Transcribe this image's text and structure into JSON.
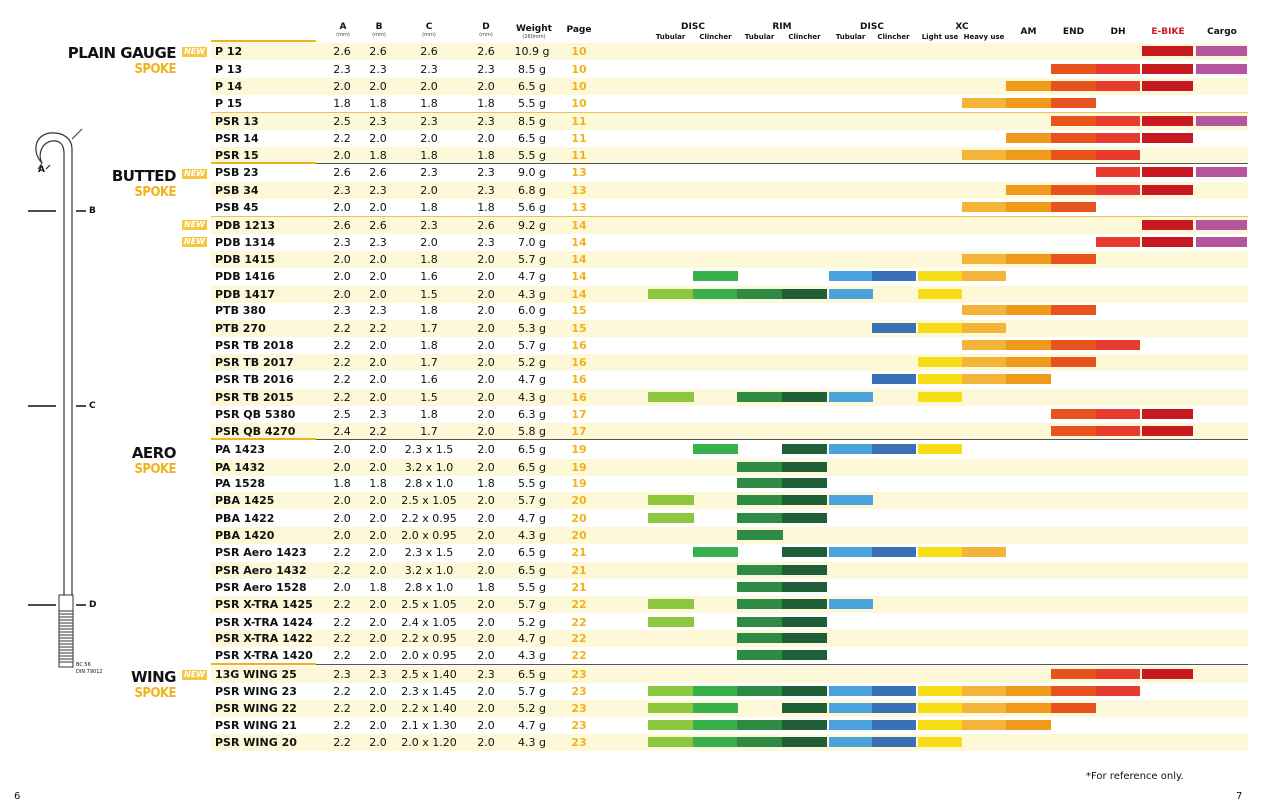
{
  "columns": {
    "a": {
      "label": "A",
      "unit": "(mm)"
    },
    "b": {
      "label": "B",
      "unit": "(mm)"
    },
    "c": {
      "label": "C",
      "unit": "(mm)"
    },
    "d": {
      "label": "D",
      "unit": "(mm)"
    },
    "weight": {
      "label": "Weight",
      "unit": "(260mm)"
    },
    "page": {
      "label": "Page"
    },
    "disc1": {
      "label": "DISC",
      "sub1": "Tubular",
      "sub2": "Clincher"
    },
    "rim": {
      "label": "RIM",
      "sub1": "Tubular",
      "sub2": "Clincher"
    },
    "disc2": {
      "label": "DISC",
      "sub1": "Tubular",
      "sub2": "Clincher"
    },
    "xc": {
      "label": "XC",
      "sub1": "Light use",
      "sub2": "Heavy use"
    },
    "am": {
      "label": "AM"
    },
    "end": {
      "label": "END"
    },
    "dh": {
      "label": "DH"
    },
    "ebike": {
      "label": "E-BIKE"
    },
    "cargo": {
      "label": "Cargo"
    }
  },
  "colors": {
    "row_tint": "#fdf9d8",
    "disc_tub": "#8dc63f",
    "disc_cli": "#39b14a",
    "rim_tub": "#2e8b44",
    "rim_cli": "#1f5e36",
    "disc2_tub": "#4aa3dc",
    "disc2_cli": "#3a70b6",
    "xc_light": "#f6dd16",
    "xc_heavy": "#f4b43a",
    "am": "#ef9a1b",
    "end": "#e8531d",
    "dh": "#e93a2e",
    "ebike": "#c81920",
    "cargo": "#b5559d"
  },
  "bar_colors": [
    "#8dc63f",
    "#39b14a",
    "#2e8b44",
    "#1f5e36",
    "#4aa3dc",
    "#3a70b6",
    "#f6dd16",
    "#f4b43a",
    "#ef9a1b",
    "#e8531d",
    "#e93a2e",
    "#c81920",
    "#b5559d"
  ],
  "categories": [
    {
      "title": "PLAIN GAUGE",
      "subtitle": "SPOKE",
      "new": "NEW"
    },
    {
      "title": "BUTTED",
      "subtitle": "SPOKE",
      "new": "NEW"
    },
    {
      "title": "AERO",
      "subtitle": "SPOKE"
    },
    {
      "title": "WING",
      "subtitle": "SPOKE",
      "new": "NEW"
    }
  ],
  "new_tags": [
    "NEW",
    "NEW"
  ],
  "diagram": {
    "labels": [
      "A",
      "B",
      "C",
      "D"
    ],
    "standard": [
      "BC 56",
      "DIN 79012"
    ]
  },
  "rows": [
    {
      "model": "P 12",
      "a": "2.6",
      "b": "2.6",
      "c": "2.6",
      "d": "2.6",
      "w": "10.9 g",
      "p": "10",
      "bars": [
        11,
        12
      ]
    },
    {
      "model": "P 13",
      "a": "2.3",
      "b": "2.3",
      "c": "2.3",
      "d": "2.3",
      "w": "8.5 g",
      "p": "10",
      "bars": [
        9,
        10,
        11,
        12
      ]
    },
    {
      "model": "P 14",
      "a": "2.0",
      "b": "2.0",
      "c": "2.0",
      "d": "2.0",
      "w": "6.5 g",
      "p": "10",
      "bars": [
        8,
        9,
        10,
        11
      ]
    },
    {
      "model": "P 15",
      "a": "1.8",
      "b": "1.8",
      "c": "1.8",
      "d": "1.8",
      "w": "5.5 g",
      "p": "10",
      "bars": [
        7,
        8,
        9
      ]
    },
    {
      "model": "PSR 13",
      "a": "2.5",
      "b": "2.3",
      "c": "2.3",
      "d": "2.3",
      "w": "8.5 g",
      "p": "11",
      "bars": [
        9,
        10,
        11,
        12
      ]
    },
    {
      "model": "PSR 14",
      "a": "2.2",
      "b": "2.0",
      "c": "2.0",
      "d": "2.0",
      "w": "6.5 g",
      "p": "11",
      "bars": [
        8,
        9,
        10,
        11
      ]
    },
    {
      "model": "PSR 15",
      "a": "2.0",
      "b": "1.8",
      "c": "1.8",
      "d": "1.8",
      "w": "5.5 g",
      "p": "11",
      "bars": [
        7,
        8,
        9,
        10
      ]
    },
    {
      "model": "PSB 23",
      "a": "2.6",
      "b": "2.6",
      "c": "2.3",
      "d": "2.3",
      "w": "9.0 g",
      "p": "13",
      "bars": [
        10,
        11,
        12
      ]
    },
    {
      "model": "PSB 34",
      "a": "2.3",
      "b": "2.3",
      "c": "2.0",
      "d": "2.3",
      "w": "6.8 g",
      "p": "13",
      "bars": [
        8,
        9,
        10,
        11
      ]
    },
    {
      "model": "PSB 45",
      "a": "2.0",
      "b": "2.0",
      "c": "1.8",
      "d": "1.8",
      "w": "5.6 g",
      "p": "13",
      "bars": [
        7,
        8,
        9
      ]
    },
    {
      "model": "PDB 1213",
      "a": "2.6",
      "b": "2.6",
      "c": "2.3",
      "d": "2.6",
      "w": "9.2 g",
      "p": "14",
      "bars": [
        11,
        12
      ]
    },
    {
      "model": "PDB 1314",
      "a": "2.3",
      "b": "2.3",
      "c": "2.0",
      "d": "2.3",
      "w": "7.0 g",
      "p": "14",
      "bars": [
        10,
        11,
        12
      ]
    },
    {
      "model": "PDB 1415",
      "a": "2.0",
      "b": "2.0",
      "c": "1.8",
      "d": "2.0",
      "w": "5.7 g",
      "p": "14",
      "bars": [
        7,
        8,
        9
      ]
    },
    {
      "model": "PDB 1416",
      "a": "2.0",
      "b": "2.0",
      "c": "1.6",
      "d": "2.0",
      "w": "4.7 g",
      "p": "14",
      "bars": [
        1,
        4,
        5,
        6,
        7
      ]
    },
    {
      "model": "PDB 1417",
      "a": "2.0",
      "b": "2.0",
      "c": "1.5",
      "d": "2.0",
      "w": "4.3 g",
      "p": "14",
      "bars": [
        0,
        1,
        2,
        3,
        4,
        6
      ]
    },
    {
      "model": "PTB 380",
      "a": "2.3",
      "b": "2.3",
      "c": "1.8",
      "d": "2.0",
      "w": "6.0 g",
      "p": "15",
      "bars": [
        7,
        8,
        9
      ]
    },
    {
      "model": "PTB 270",
      "a": "2.2",
      "b": "2.2",
      "c": "1.7",
      "d": "2.0",
      "w": "5.3 g",
      "p": "15",
      "bars": [
        5,
        6,
        7
      ]
    },
    {
      "model": "PSR TB 2018",
      "a": "2.2",
      "b": "2.0",
      "c": "1.8",
      "d": "2.0",
      "w": "5.7 g",
      "p": "16",
      "bars": [
        7,
        8,
        9,
        10
      ]
    },
    {
      "model": "PSR TB 2017",
      "a": "2.2",
      "b": "2.0",
      "c": "1.7",
      "d": "2.0",
      "w": "5.2 g",
      "p": "16",
      "bars": [
        6,
        7,
        8,
        9
      ]
    },
    {
      "model": "PSR TB 2016",
      "a": "2.2",
      "b": "2.0",
      "c": "1.6",
      "d": "2.0",
      "w": "4.7 g",
      "p": "16",
      "bars": [
        5,
        6,
        7,
        8
      ]
    },
    {
      "model": "PSR TB 2015",
      "a": "2.2",
      "b": "2.0",
      "c": "1.5",
      "d": "2.0",
      "w": "4.3 g",
      "p": "16",
      "bars": [
        0,
        2,
        3,
        4,
        6
      ]
    },
    {
      "model": "PSR QB 5380",
      "a": "2.5",
      "b": "2.3",
      "c": "1.8",
      "d": "2.0",
      "w": "6.3 g",
      "p": "17",
      "bars": [
        9,
        10,
        11
      ]
    },
    {
      "model": "PSR QB 4270",
      "a": "2.4",
      "b": "2.2",
      "c": "1.7",
      "d": "2.0",
      "w": "5.8 g",
      "p": "17",
      "bars": [
        9,
        10,
        11
      ]
    },
    {
      "model": "PA 1423",
      "a": "2.0",
      "b": "2.0",
      "c": "2.3 x 1.5",
      "d": "2.0",
      "w": "6.5 g",
      "p": "19",
      "bars": [
        1,
        3,
        4,
        5,
        6
      ]
    },
    {
      "model": "PA 1432",
      "a": "2.0",
      "b": "2.0",
      "c": "3.2 x 1.0",
      "d": "2.0",
      "w": "6.5 g",
      "p": "19",
      "bars": [
        2,
        3
      ]
    },
    {
      "model": "PA 1528",
      "a": "1.8",
      "b": "1.8",
      "c": "2.8 x 1.0",
      "d": "1.8",
      "w": "5.5 g",
      "p": "19",
      "bars": [
        2,
        3
      ]
    },
    {
      "model": "PBA 1425",
      "a": "2.0",
      "b": "2.0",
      "c": "2.5 x 1.05",
      "d": "2.0",
      "w": "5.7 g",
      "p": "20",
      "bars": [
        0,
        2,
        3,
        4
      ]
    },
    {
      "model": "PBA 1422",
      "a": "2.0",
      "b": "2.0",
      "c": "2.2 x 0.95",
      "d": "2.0",
      "w": "4.7 g",
      "p": "20",
      "bars": [
        0,
        2,
        3
      ]
    },
    {
      "model": "PBA 1420",
      "a": "2.0",
      "b": "2.0",
      "c": "2.0 x 0.95",
      "d": "2.0",
      "w": "4.3 g",
      "p": "20",
      "bars": [
        2
      ]
    },
    {
      "model": "PSR Aero 1423",
      "a": "2.2",
      "b": "2.0",
      "c": "2.3 x 1.5",
      "d": "2.0",
      "w": "6.5 g",
      "p": "21",
      "bars": [
        1,
        3,
        4,
        5,
        6,
        7
      ]
    },
    {
      "model": "PSR Aero 1432",
      "a": "2.2",
      "b": "2.0",
      "c": "3.2 x 1.0",
      "d": "2.0",
      "w": "6.5 g",
      "p": "21",
      "bars": [
        2,
        3
      ]
    },
    {
      "model": "PSR Aero 1528",
      "a": "2.0",
      "b": "1.8",
      "c": "2.8 x 1.0",
      "d": "1.8",
      "w": "5.5 g",
      "p": "21",
      "bars": [
        2,
        3
      ]
    },
    {
      "model": "PSR X-TRA 1425",
      "a": "2.2",
      "b": "2.0",
      "c": "2.5 x 1.05",
      "d": "2.0",
      "w": "5.7 g",
      "p": "22",
      "bars": [
        0,
        2,
        3,
        4
      ]
    },
    {
      "model": "PSR X-TRA 1424",
      "a": "2.2",
      "b": "2.0",
      "c": "2.4 x 1.05",
      "d": "2.0",
      "w": "5.2 g",
      "p": "22",
      "bars": [
        0,
        2,
        3
      ]
    },
    {
      "model": "PSR X-TRA 1422",
      "a": "2.2",
      "b": "2.0",
      "c": "2.2 x 0.95",
      "d": "2.0",
      "w": "4.7 g",
      "p": "22",
      "bars": [
        2,
        3
      ]
    },
    {
      "model": "PSR X-TRA 1420",
      "a": "2.2",
      "b": "2.0",
      "c": "2.0 x 0.95",
      "d": "2.0",
      "w": "4.3 g",
      "p": "22",
      "bars": [
        2,
        3
      ]
    },
    {
      "model": "13G WING 25",
      "a": "2.3",
      "b": "2.3",
      "c": "2.5 x 1.40",
      "d": "2.3",
      "w": "6.5 g",
      "p": "23",
      "bars": [
        9,
        10,
        11
      ]
    },
    {
      "model": "PSR WING 23",
      "a": "2.2",
      "b": "2.0",
      "c": "2.3 x 1.45",
      "d": "2.0",
      "w": "5.7 g",
      "p": "23",
      "bars": [
        0,
        1,
        2,
        3,
        4,
        5,
        6,
        7,
        8,
        9,
        10
      ]
    },
    {
      "model": "PSR WING 22",
      "a": "2.2",
      "b": "2.0",
      "c": "2.2 x 1.40",
      "d": "2.0",
      "w": "5.2 g",
      "p": "23",
      "bars": [
        0,
        1,
        3,
        4,
        5,
        6,
        7,
        8,
        9
      ]
    },
    {
      "model": "PSR WING 21",
      "a": "2.2",
      "b": "2.0",
      "c": "2.1 x 1.30",
      "d": "2.0",
      "w": "4.7 g",
      "p": "23",
      "bars": [
        0,
        1,
        2,
        3,
        4,
        5,
        6,
        7,
        8
      ]
    },
    {
      "model": "PSR WING 20",
      "a": "2.2",
      "b": "2.0",
      "c": "2.0 x 1.20",
      "d": "2.0",
      "w": "4.3 g",
      "p": "23",
      "bars": [
        0,
        1,
        2,
        3,
        4,
        5,
        6
      ]
    }
  ],
  "footnote": "*For reference only.",
  "page_left": "6",
  "page_right": "7"
}
